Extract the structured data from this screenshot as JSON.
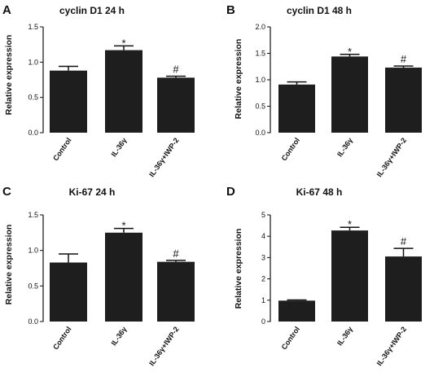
{
  "chart_data": [
    {
      "panel": "A",
      "type": "bar",
      "title": "cyclin D1 24 h",
      "ylabel": "Relative expression",
      "xlabel": "",
      "categories": [
        "Control",
        "IL-36γ",
        "IL-36γ+IWP-2"
      ],
      "values": [
        0.88,
        1.17,
        0.78
      ],
      "errors": [
        0.06,
        0.06,
        0.02
      ],
      "annotations": [
        "",
        "*",
        "#"
      ],
      "ylim": [
        0,
        1.5
      ],
      "yticks": [
        0.0,
        0.5,
        1.0,
        1.5
      ],
      "tick_labels": [
        "0.0",
        "0.5",
        "1.0",
        "1.5"
      ],
      "grid": false,
      "bar_color": "#1e1e1e"
    },
    {
      "panel": "B",
      "type": "bar",
      "title": "cyclin D1 48 h",
      "ylabel": "Relative expression",
      "xlabel": "",
      "categories": [
        "Control",
        "IL-36γ",
        "IL-36γ+IWP-2"
      ],
      "values": [
        0.91,
        1.44,
        1.23
      ],
      "errors": [
        0.05,
        0.04,
        0.03
      ],
      "annotations": [
        "",
        "*",
        "#"
      ],
      "ylim": [
        0,
        2.0
      ],
      "yticks": [
        0.0,
        0.5,
        1.0,
        1.5,
        2.0
      ],
      "tick_labels": [
        "0.0",
        "0.5",
        "1.0",
        "1.5",
        "2.0"
      ],
      "grid": false,
      "bar_color": "#1e1e1e"
    },
    {
      "panel": "C",
      "type": "bar",
      "title": "Ki-67 24 h",
      "ylabel": "Relative expression",
      "xlabel": "",
      "categories": [
        "Control",
        "IL-36γ",
        "IL-36γ+IWP-2"
      ],
      "values": [
        0.83,
        1.25,
        0.84
      ],
      "errors": [
        0.12,
        0.06,
        0.02
      ],
      "annotations": [
        "",
        "*",
        "#"
      ],
      "ylim": [
        0,
        1.5
      ],
      "yticks": [
        0.0,
        0.5,
        1.0,
        1.5
      ],
      "tick_labels": [
        "0.0",
        "0.5",
        "1.0",
        "1.5"
      ],
      "grid": false,
      "bar_color": "#1e1e1e"
    },
    {
      "panel": "D",
      "type": "bar",
      "title": "Ki-67 48 h",
      "ylabel": "Relative expression",
      "xlabel": "",
      "categories": [
        "Control",
        "IL-36γ",
        "IL-36γ+IWP-2"
      ],
      "values": [
        0.98,
        4.27,
        3.05
      ],
      "errors": [
        0.03,
        0.15,
        0.38
      ],
      "annotations": [
        "",
        "*",
        "#"
      ],
      "ylim": [
        0,
        5
      ],
      "yticks": [
        0,
        1,
        2,
        3,
        4,
        5
      ],
      "tick_labels": [
        "0",
        "1",
        "2",
        "3",
        "4",
        "5"
      ],
      "grid": false,
      "bar_color": "#1e1e1e"
    }
  ]
}
